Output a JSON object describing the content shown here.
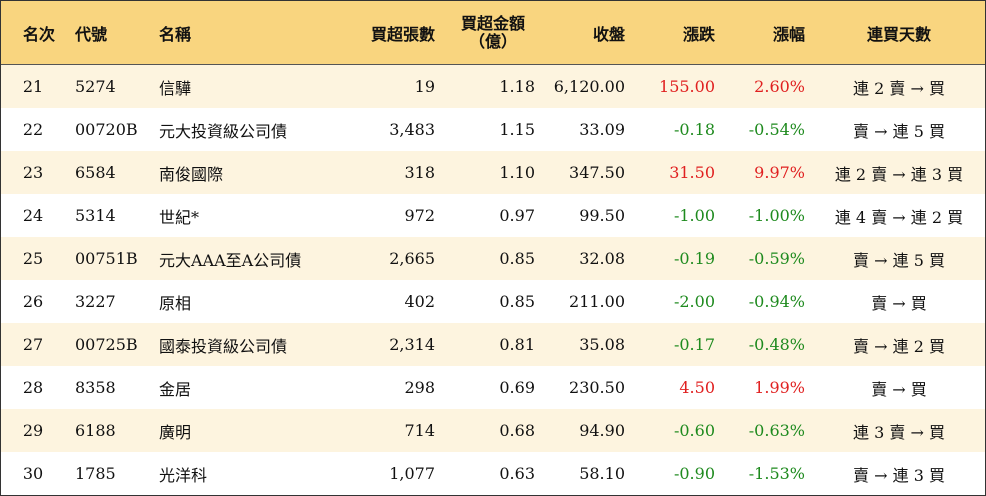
{
  "headers": {
    "rank": "名次",
    "code": "代號",
    "name": "名稱",
    "qty": "買超張數",
    "amount_line1": "買超金額",
    "amount_line2": "（億）",
    "close": "收盤",
    "change": "漲跌",
    "pct": "漲幅",
    "days": "連買天數"
  },
  "colors": {
    "header_bg": "#f9d57f",
    "odd_row_bg": "#fdf4df",
    "up": "#e02020",
    "down": "#1e8a1e"
  },
  "rows": [
    {
      "rank": "21",
      "code": "5274",
      "name": "信驊",
      "qty": "19",
      "amount": "1.18",
      "close": "6,120.00",
      "change": "155.00",
      "pct": "2.60%",
      "days": "連 2 賣 → 買",
      "dir": "up"
    },
    {
      "rank": "22",
      "code": "00720B",
      "name": "元大投資級公司債",
      "qty": "3,483",
      "amount": "1.15",
      "close": "33.09",
      "change": "-0.18",
      "pct": "-0.54%",
      "days": "賣 → 連 5 買",
      "dir": "down"
    },
    {
      "rank": "23",
      "code": "6584",
      "name": "南俊國際",
      "qty": "318",
      "amount": "1.10",
      "close": "347.50",
      "change": "31.50",
      "pct": "9.97%",
      "days": "連 2 賣 → 連 3 買",
      "dir": "up"
    },
    {
      "rank": "24",
      "code": "5314",
      "name": "世紀*",
      "qty": "972",
      "amount": "0.97",
      "close": "99.50",
      "change": "-1.00",
      "pct": "-1.00%",
      "days": "連 4 賣 → 連 2 買",
      "dir": "down"
    },
    {
      "rank": "25",
      "code": "00751B",
      "name": "元大AAA至A公司債",
      "qty": "2,665",
      "amount": "0.85",
      "close": "32.08",
      "change": "-0.19",
      "pct": "-0.59%",
      "days": "賣 → 連 5 買",
      "dir": "down"
    },
    {
      "rank": "26",
      "code": "3227",
      "name": "原相",
      "qty": "402",
      "amount": "0.85",
      "close": "211.00",
      "change": "-2.00",
      "pct": "-0.94%",
      "days": "賣 → 買",
      "dir": "down"
    },
    {
      "rank": "27",
      "code": "00725B",
      "name": "國泰投資級公司債",
      "qty": "2,314",
      "amount": "0.81",
      "close": "35.08",
      "change": "-0.17",
      "pct": "-0.48%",
      "days": "賣 → 連 2 買",
      "dir": "down"
    },
    {
      "rank": "28",
      "code": "8358",
      "name": "金居",
      "qty": "298",
      "amount": "0.69",
      "close": "230.50",
      "change": "4.50",
      "pct": "1.99%",
      "days": "賣 → 買",
      "dir": "up"
    },
    {
      "rank": "29",
      "code": "6188",
      "name": "廣明",
      "qty": "714",
      "amount": "0.68",
      "close": "94.90",
      "change": "-0.60",
      "pct": "-0.63%",
      "days": "連 3 賣 → 買",
      "dir": "down"
    },
    {
      "rank": "30",
      "code": "1785",
      "name": "光洋科",
      "qty": "1,077",
      "amount": "0.63",
      "close": "58.10",
      "change": "-0.90",
      "pct": "-1.53%",
      "days": "賣 → 連 3 買",
      "dir": "down"
    }
  ]
}
